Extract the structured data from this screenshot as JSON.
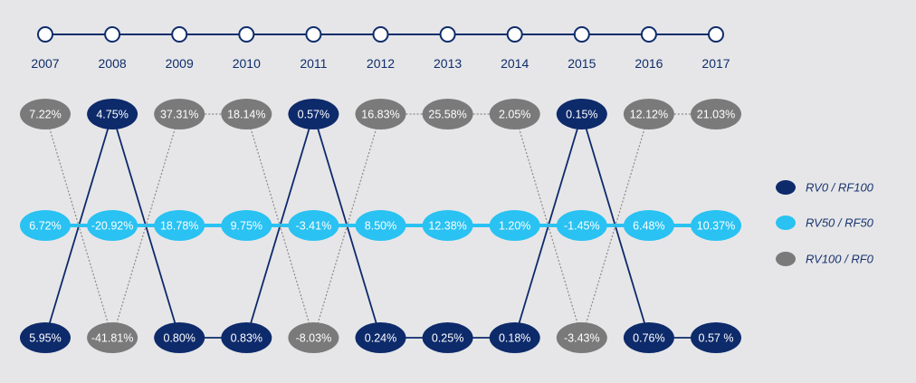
{
  "chart_data": {
    "type": "slope-swap",
    "years": [
      "2007",
      "2008",
      "2009",
      "2010",
      "2011",
      "2012",
      "2013",
      "2014",
      "2015",
      "2016",
      "2017"
    ],
    "rows": [
      "top",
      "middle",
      "bottom"
    ],
    "series": [
      {
        "name": "RV0 / RF100",
        "color": "#0d2a6b",
        "values": [
          "5.95%",
          "4.75%",
          "0.80%",
          "0.83%",
          "0.57%",
          "0.24%",
          "0.25%",
          "0.18%",
          "0.15%",
          "0.76%",
          "0.57 %"
        ],
        "row": [
          "bottom",
          "top",
          "bottom",
          "bottom",
          "top",
          "bottom",
          "bottom",
          "bottom",
          "top",
          "bottom",
          "bottom"
        ]
      },
      {
        "name": "RV50 / RF50",
        "color": "#29c2f2",
        "values": [
          "6.72%",
          "-20.92%",
          "18.78%",
          "9.75%",
          "-3.41%",
          "8.50%",
          "12.38%",
          "1.20%",
          "-1.45%",
          "6.48%",
          "10.37%"
        ],
        "row": [
          "middle",
          "middle",
          "middle",
          "middle",
          "middle",
          "middle",
          "middle",
          "middle",
          "middle",
          "middle",
          "middle"
        ]
      },
      {
        "name": "RV100 / RF0",
        "color": "#7a7a7a",
        "values": [
          "7.22%",
          "-41.81%",
          "37.31%",
          "18.14%",
          "-8.03%",
          "16.83%",
          "25.58%",
          "2.05%",
          "-3.43%",
          "12.12%",
          "21.03%"
        ],
        "row": [
          "top",
          "bottom",
          "top",
          "top",
          "bottom",
          "top",
          "top",
          "top",
          "bottom",
          "top",
          "top"
        ]
      }
    ],
    "legend": [
      "RV0 / RF100",
      "RV50 / RF50",
      "RV100 / RF0"
    ],
    "legend_position": "right",
    "timeline_color": "#0f2d6b"
  }
}
